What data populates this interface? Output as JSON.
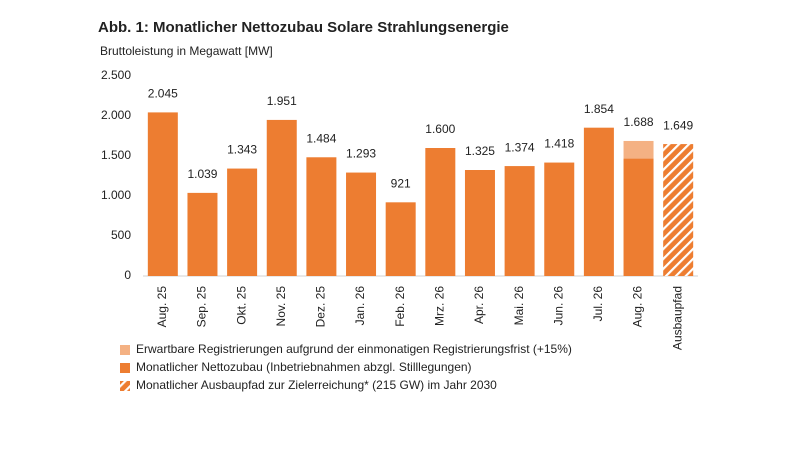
{
  "chart_data": {
    "type": "bar",
    "title": "Abb. 1: Monatlicher Nettozubau Solare Strahlungsenergie",
    "subtitle": "Bruttoleistung in Megawatt [MW]",
    "categories": [
      "Aug. 25",
      "Sep. 25",
      "Okt. 25",
      "Nov. 25",
      "Dez. 25",
      "Jan. 26",
      "Feb. 26",
      "Mrz. 26",
      "Apr. 26",
      "Mai. 26",
      "Jun. 26",
      "Jul. 26",
      "Aug. 26",
      "Ausbaupfad"
    ],
    "series": [
      {
        "name": "Erwartbare Registrierungen aufgrund der einmonatigen Registrierungsfrist (+15%)",
        "color": "#f4b183",
        "values": [
          null,
          null,
          null,
          null,
          null,
          null,
          null,
          null,
          null,
          null,
          null,
          null,
          220,
          null
        ]
      },
      {
        "name": "Monatlicher Nettozubau (Inbetriebnahmen abzgl. Stilllegungen)",
        "color": "#ed7d31",
        "values": [
          2045,
          1039,
          1343,
          1951,
          1484,
          1293,
          921,
          1600,
          1325,
          1374,
          1418,
          1854,
          1468,
          null
        ]
      },
      {
        "name": "Monatlicher Ausbaupfad zur Zielerreichung* (215 GW) im Jahr 2030",
        "color": "#ed7d31",
        "pattern": "hatch",
        "values": [
          null,
          null,
          null,
          null,
          null,
          null,
          null,
          null,
          null,
          null,
          null,
          null,
          null,
          1649
        ]
      }
    ],
    "totals": {
      "values": [
        2045,
        1039,
        1343,
        1951,
        1484,
        1293,
        921,
        1600,
        1325,
        1374,
        1418,
        1854,
        1688,
        1649
      ],
      "value_labels": [
        "2.045",
        "1.039",
        "1.343",
        "1.951",
        "1.484",
        "1.293",
        "921",
        "1.600",
        "1.325",
        "1.374",
        "1.418",
        "1.854",
        "1.688",
        "1.649"
      ]
    },
    "ylim": [
      0,
      2500
    ],
    "yticks": [
      0,
      500,
      {
        "value": 1000,
        "label": "1.000"
      },
      {
        "value": 1500,
        "label": "1.500"
      },
      {
        "value": 2000,
        "label": "2.000"
      },
      {
        "value": 2500,
        "label": "2.500"
      }
    ],
    "grid": false
  }
}
